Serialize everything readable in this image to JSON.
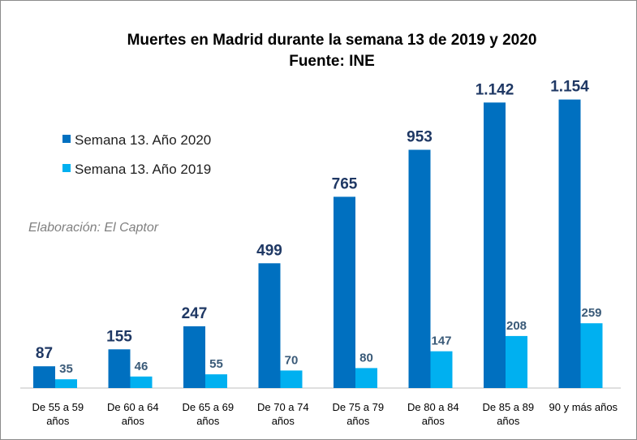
{
  "chart_data": {
    "type": "bar",
    "title": "Muertes en Madrid durante la semana 13 de 2019 y 2020",
    "subtitle": "Fuente: INE",
    "credit": "Elaboración: El Captor",
    "categories": [
      [
        "De 55 a 59",
        "años"
      ],
      [
        "De 60 a 64",
        "años"
      ],
      [
        "De 65 a 69",
        "años"
      ],
      [
        "De 70 a 74",
        "años"
      ],
      [
        "De 75 a 79",
        "años"
      ],
      [
        "De 80 a 84",
        "años"
      ],
      [
        "De 85 a 89",
        "años"
      ],
      [
        "90 y más años"
      ]
    ],
    "series": [
      {
        "name": "Semana 13. Año 2020",
        "color": "#0070c0",
        "values": [
          87,
          155,
          247,
          499,
          765,
          953,
          1142,
          1154
        ],
        "labels": [
          "87",
          "155",
          "247",
          "499",
          "765",
          "953",
          "1.142",
          "1.154"
        ]
      },
      {
        "name": "Semana 13. Año 2019",
        "color": "#00b0f0",
        "values": [
          35,
          46,
          55,
          70,
          80,
          147,
          208,
          259
        ],
        "labels": [
          "35",
          "46",
          "55",
          "70",
          "80",
          "147",
          "208",
          "259"
        ]
      }
    ],
    "ylim": [
      0,
      1250
    ],
    "grid": false,
    "legend_position": "top-left"
  }
}
